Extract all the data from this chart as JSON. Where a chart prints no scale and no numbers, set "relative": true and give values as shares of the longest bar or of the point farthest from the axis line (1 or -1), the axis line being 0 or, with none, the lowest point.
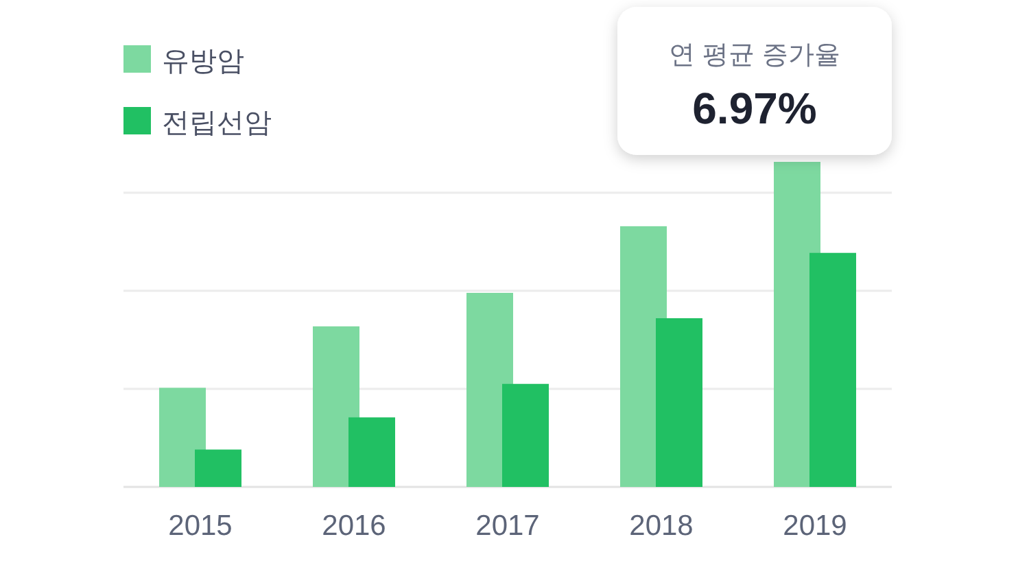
{
  "chart_data": {
    "type": "bar",
    "relative": true,
    "categories": [
      "2015",
      "2016",
      "2017",
      "2018",
      "2019"
    ],
    "series": [
      {
        "name": "유방암",
        "color": "#7dd9a0",
        "values": [
          0.305,
          0.494,
          0.597,
          0.802,
          1
        ]
      },
      {
        "name": "전립선암",
        "color": "#21c063",
        "values": [
          0.115,
          0.214,
          0.317,
          0.519,
          0.72
        ]
      }
    ],
    "annotations": [
      "연 평균 증가율",
      "6.97%"
    ],
    "grid": "y",
    "legend": "top left"
  }
}
